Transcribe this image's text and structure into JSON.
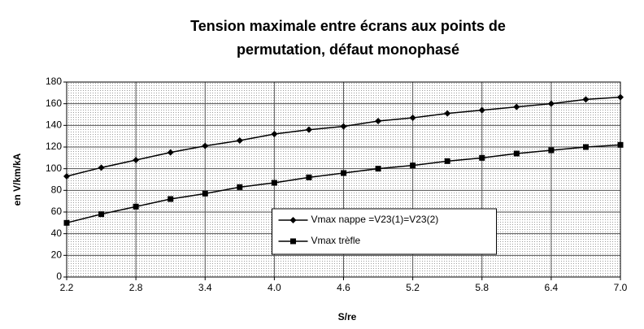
{
  "chart_data": {
    "type": "line",
    "title": [
      "Tension maximale entre écrans aux points de",
      "permutation, défaut monophasé"
    ],
    "x_label": "S/re",
    "y_label": "en V/km/kA",
    "x": [
      2.2,
      2.5,
      2.8,
      3.1,
      3.4,
      3.7,
      4.0,
      4.3,
      4.6,
      4.9,
      5.2,
      5.5,
      5.8,
      6.1,
      6.4,
      6.7,
      7.0
    ],
    "series": [
      {
        "name": "Vmax nappe =V23(1)=V23(2)",
        "color": "#000000",
        "marker": "diamond",
        "values": [
          93,
          101,
          108,
          115,
          121,
          126,
          132,
          136,
          139,
          144,
          147,
          151,
          154,
          157,
          160,
          164,
          166
        ]
      },
      {
        "name": "Vmax trèfle",
        "color": "#000000",
        "marker": "square",
        "values": [
          50,
          58,
          65,
          72,
          77,
          83,
          87,
          92,
          96,
          100,
          103,
          107,
          110,
          114,
          117,
          120,
          122
        ]
      }
    ],
    "xlim": [
      2.2,
      7.0
    ],
    "xticks": [
      2.2,
      2.8,
      3.4,
      {
        "value": 4,
        "label": "4.0"
      },
      4.6,
      5.2,
      5.8,
      6.4,
      {
        "value": 7,
        "label": "7.0"
      }
    ],
    "ylim": [
      0,
      180
    ],
    "yticks": [
      0,
      20,
      40,
      60,
      80,
      100,
      120,
      140,
      160,
      180
    ],
    "grid": true,
    "legend": "lower center"
  }
}
